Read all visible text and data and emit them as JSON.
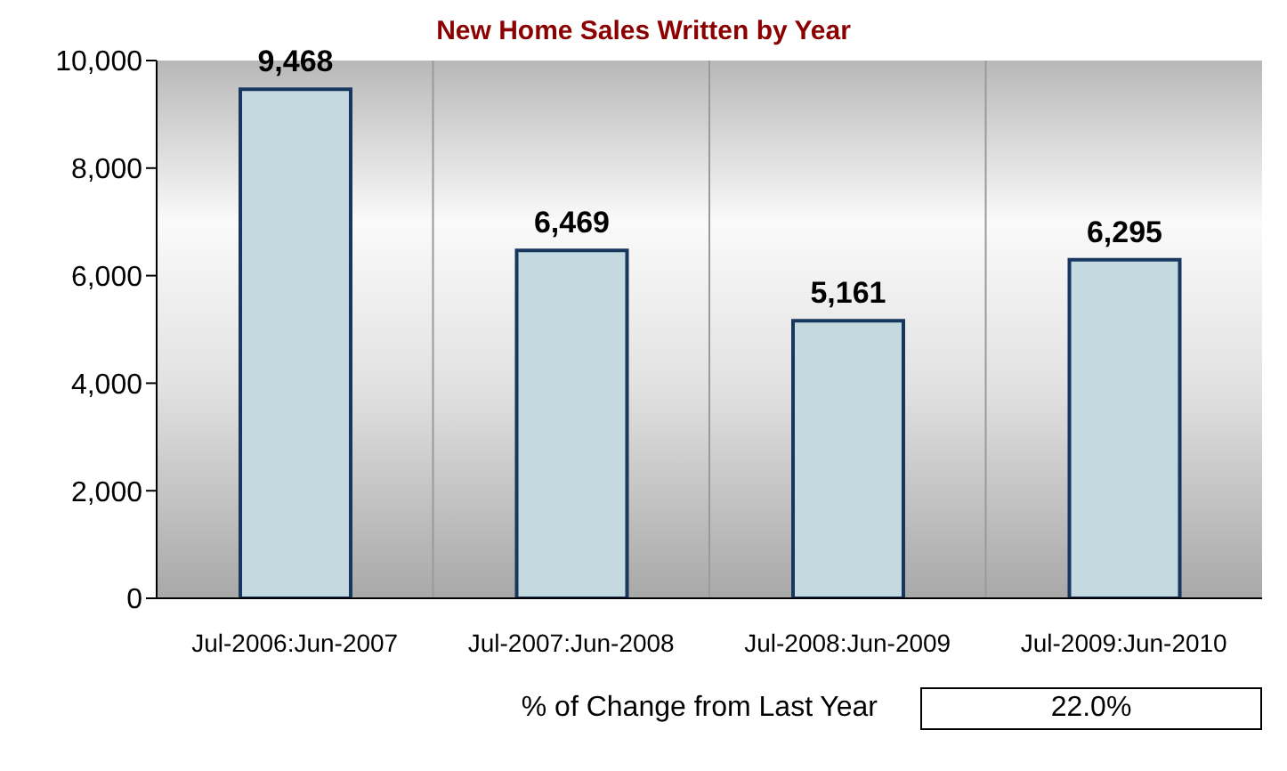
{
  "chart_data": {
    "type": "bar",
    "title": "New Home Sales Written by Year",
    "categories": [
      "Jul-2006:Jun-2007",
      "Jul-2007:Jun-2008",
      "Jul-2008:Jun-2009",
      "Jul-2009:Jun-2010"
    ],
    "values": [
      9468,
      6469,
      5161,
      6295
    ],
    "value_labels": [
      "9,468",
      "6,469",
      "5,161",
      "6,295"
    ],
    "color": "#c5d9e1",
    "ylim": [
      0,
      10000
    ],
    "yticks": [
      0,
      {
        "value": 2000,
        "label": "2,000"
      },
      {
        "value": 4000,
        "label": "4,000"
      },
      {
        "value": 6000,
        "label": "6,000"
      },
      {
        "value": 8000,
        "label": "8,000"
      },
      {
        "value": 10000,
        "label": "10,000"
      }
    ],
    "grid": "x",
    "annotations": [
      "% of Change from Last Year",
      "22.0%"
    ]
  }
}
